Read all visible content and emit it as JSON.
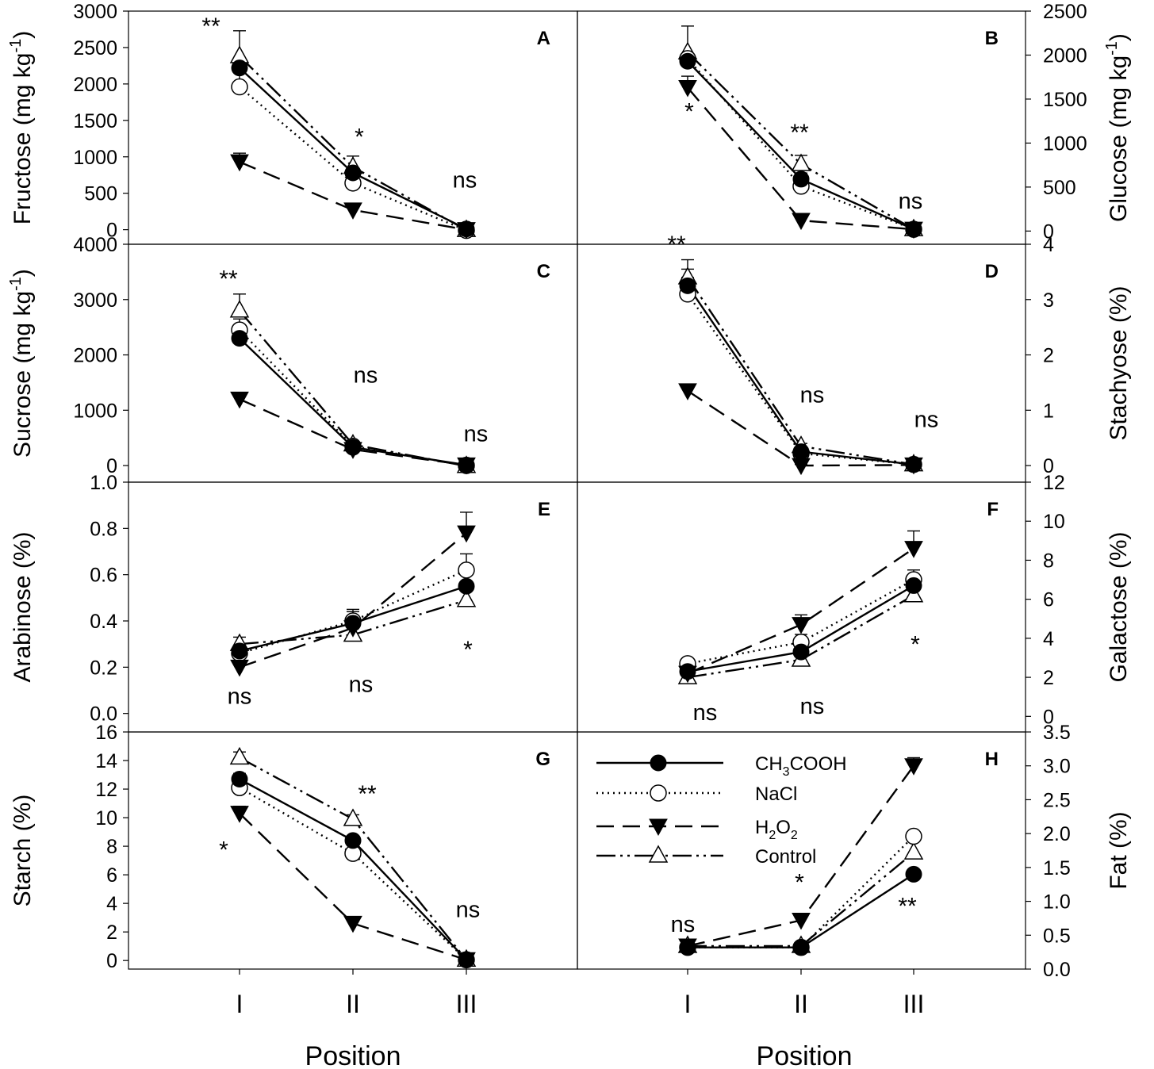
{
  "figure": {
    "xlabel": "Position",
    "positions": [
      "I",
      "II",
      "III"
    ]
  },
  "legend": {
    "entries": [
      {
        "series": "CH3COOH",
        "main": "CH",
        "sub1": "3",
        "tail": "COOH"
      },
      {
        "series": "NaCl",
        "main": "NaCl"
      },
      {
        "series": "H2O2",
        "main": "H",
        "sub1": "2",
        "mid": "O",
        "sub2": "2"
      },
      {
        "series": "Control",
        "main": "Control"
      }
    ]
  },
  "chart_data": [
    {
      "panel": "A",
      "type": "line",
      "ylabel": "Fructose (mg kg",
      "ylabel_sup": "-1",
      "ylabel_close": ")",
      "side": "left",
      "ylim": [
        -200,
        3000
      ],
      "ticks": [
        0,
        500,
        1000,
        1500,
        2000,
        2500,
        3000
      ],
      "categories": [
        "I",
        "II",
        "III"
      ],
      "series": [
        {
          "name": "CH3COOH",
          "values": [
            2220,
            780,
            10
          ],
          "err": [
            80,
            70,
            0
          ]
        },
        {
          "name": "NaCl",
          "values": [
            1960,
            640,
            -10
          ],
          "err": [
            300,
            60,
            0
          ]
        },
        {
          "name": "H2O2",
          "values": [
            930,
            270,
            0
          ],
          "err": [
            120,
            30,
            0
          ]
        },
        {
          "name": "Control",
          "values": [
            2380,
            860,
            -5
          ],
          "err": [
            350,
            150,
            0
          ]
        }
      ],
      "sig": [
        "**",
        "*",
        "ns"
      ]
    },
    {
      "panel": "B",
      "type": "line",
      "ylabel": "Glucose (mg kg",
      "ylabel_sup": "-1",
      "ylabel_close": ")",
      "side": "right",
      "ylim": [
        -150,
        2500
      ],
      "ticks": [
        0,
        500,
        1000,
        1500,
        2000,
        2500
      ],
      "categories": [
        "I",
        "II",
        "III"
      ],
      "series": [
        {
          "name": "CH3COOH",
          "values": [
            1930,
            590,
            20
          ],
          "err": [
            70,
            70,
            0
          ]
        },
        {
          "name": "NaCl",
          "values": [
            1960,
            510,
            20
          ],
          "err": [
            60,
            60,
            0
          ]
        },
        {
          "name": "H2O2",
          "values": [
            1630,
            120,
            20
          ],
          "err": [
            130,
            30,
            0
          ]
        },
        {
          "name": "Control",
          "values": [
            2030,
            760,
            20
          ],
          "err": [
            300,
            100,
            0
          ]
        }
      ],
      "sig": [
        "*",
        "**",
        "ns"
      ]
    },
    {
      "panel": "C",
      "type": "line",
      "ylabel": "Sucrose (mg kg",
      "ylabel_sup": "-1",
      "ylabel_close": ")",
      "side": "left",
      "ylim": [
        -300,
        4000
      ],
      "ticks": [
        0,
        1000,
        2000,
        3000,
        4000
      ],
      "categories": [
        "I",
        "II",
        "III"
      ],
      "series": [
        {
          "name": "CH3COOH",
          "values": [
            2300,
            330,
            10
          ],
          "err": [
            200,
            40,
            0
          ]
        },
        {
          "name": "NaCl",
          "values": [
            2450,
            350,
            0
          ],
          "err": [
            200,
            40,
            0
          ]
        },
        {
          "name": "H2O2",
          "values": [
            1200,
            290,
            10
          ],
          "err": [
            120,
            30,
            0
          ]
        },
        {
          "name": "Control",
          "values": [
            2800,
            380,
            -10
          ],
          "err": [
            300,
            40,
            0
          ]
        }
      ],
      "sig": [
        "**",
        "ns",
        "ns"
      ]
    },
    {
      "panel": "D",
      "type": "line",
      "ylabel": "Stachyose (%)",
      "side": "right",
      "ylim": [
        -0.3,
        4
      ],
      "ticks": [
        0,
        1,
        2,
        3,
        4
      ],
      "categories": [
        "I",
        "II",
        "III"
      ],
      "series": [
        {
          "name": "CH3COOH",
          "values": [
            3.25,
            0.25,
            0.02
          ],
          "err": [
            0.3,
            0.05,
            0
          ]
        },
        {
          "name": "NaCl",
          "values": [
            3.1,
            0.22,
            0.02
          ],
          "err": [
            0.3,
            0.05,
            0
          ]
        },
        {
          "name": "H2O2",
          "values": [
            1.35,
            0.0,
            0.01
          ],
          "err": [
            0.12,
            0.02,
            0
          ]
        },
        {
          "name": "Control",
          "values": [
            3.4,
            0.35,
            0.02
          ],
          "err": [
            0.32,
            0.05,
            0
          ]
        }
      ],
      "sig": [
        "**",
        "ns",
        "ns"
      ]
    },
    {
      "panel": "E",
      "type": "line",
      "ylabel": "Arabinose (%)",
      "side": "left",
      "ylim": [
        -0.08,
        1.0
      ],
      "ticks": [
        0.0,
        0.2,
        0.4,
        0.6,
        0.8,
        1.0
      ],
      "categories": [
        "I",
        "II",
        "III"
      ],
      "series": [
        {
          "name": "CH3COOH",
          "values": [
            0.27,
            0.39,
            0.55
          ],
          "err": [
            0.02,
            0.05,
            0.05
          ]
        },
        {
          "name": "NaCl",
          "values": [
            0.26,
            0.4,
            0.62
          ],
          "err": [
            0.02,
            0.05,
            0.07
          ]
        },
        {
          "name": "H2O2",
          "values": [
            0.2,
            0.37,
            0.78
          ],
          "err": [
            0.02,
            0.04,
            0.09
          ]
        },
        {
          "name": "Control",
          "values": [
            0.3,
            0.34,
            0.49
          ],
          "err": [
            0.03,
            0.04,
            0.06
          ]
        }
      ],
      "sig": [
        "ns",
        "ns",
        "*"
      ]
    },
    {
      "panel": "F",
      "type": "line",
      "ylabel": "Galactose (%)",
      "side": "right",
      "ylim": [
        -0.8,
        12
      ],
      "ticks": [
        0,
        2,
        4,
        6,
        8,
        10,
        12
      ],
      "categories": [
        "I",
        "II",
        "III"
      ],
      "series": [
        {
          "name": "CH3COOH",
          "values": [
            2.3,
            3.3,
            6.7
          ],
          "err": [
            0.2,
            0.4,
            0.5
          ]
        },
        {
          "name": "NaCl",
          "values": [
            2.7,
            3.8,
            7.0
          ],
          "err": [
            0.2,
            0.4,
            0.5
          ]
        },
        {
          "name": "H2O2",
          "values": [
            2.2,
            4.7,
            8.6
          ],
          "err": [
            0.2,
            0.5,
            0.9
          ]
        },
        {
          "name": "Control",
          "values": [
            2.0,
            2.9,
            6.2
          ],
          "err": [
            0.2,
            0.3,
            0.8
          ]
        }
      ],
      "sig": [
        "ns",
        "ns",
        "*"
      ]
    },
    {
      "panel": "G",
      "type": "line",
      "ylabel": "Starch (%)",
      "side": "left",
      "ylim": [
        -0.6,
        16
      ],
      "ticks": [
        0,
        2,
        4,
        6,
        8,
        10,
        12,
        14,
        16
      ],
      "categories": [
        "I",
        "II",
        "III"
      ],
      "series": [
        {
          "name": "CH3COOH",
          "values": [
            12.7,
            8.4,
            0.05
          ],
          "err": [
            0.4,
            0.3,
            0
          ]
        },
        {
          "name": "NaCl",
          "values": [
            12.1,
            7.5,
            0.05
          ],
          "err": [
            0.4,
            0.3,
            0
          ]
        },
        {
          "name": "H2O2",
          "values": [
            10.3,
            2.6,
            0.05
          ],
          "err": [
            0.5,
            0.2,
            0
          ]
        },
        {
          "name": "Control",
          "values": [
            14.2,
            9.9,
            0.05
          ],
          "err": [
            0.4,
            0.3,
            0
          ]
        }
      ],
      "sig": [
        "*",
        "**",
        "ns"
      ]
    },
    {
      "panel": "H",
      "type": "line",
      "ylabel": "Fat (%)",
      "side": "right",
      "ylim": [
        0.0,
        3.5
      ],
      "ticks": [
        0.0,
        0.5,
        1.0,
        1.5,
        2.0,
        2.5,
        3.0,
        3.5
      ],
      "categories": [
        "I",
        "II",
        "III"
      ],
      "series": [
        {
          "name": "CH3COOH",
          "values": [
            0.32,
            0.32,
            1.4
          ],
          "err": [
            0.02,
            0.02,
            0
          ]
        },
        {
          "name": "NaCl",
          "values": [
            0.32,
            0.32,
            1.96
          ],
          "err": [
            0.02,
            0.02,
            0
          ]
        },
        {
          "name": "H2O2",
          "values": [
            0.34,
            0.72,
            3.0
          ],
          "err": [
            0.02,
            0.05,
            0.12
          ]
        },
        {
          "name": "Control",
          "values": [
            0.34,
            0.34,
            1.72
          ],
          "err": [
            0.02,
            0.02,
            0
          ]
        }
      ],
      "sig": [
        "ns",
        "*",
        "**"
      ]
    }
  ]
}
